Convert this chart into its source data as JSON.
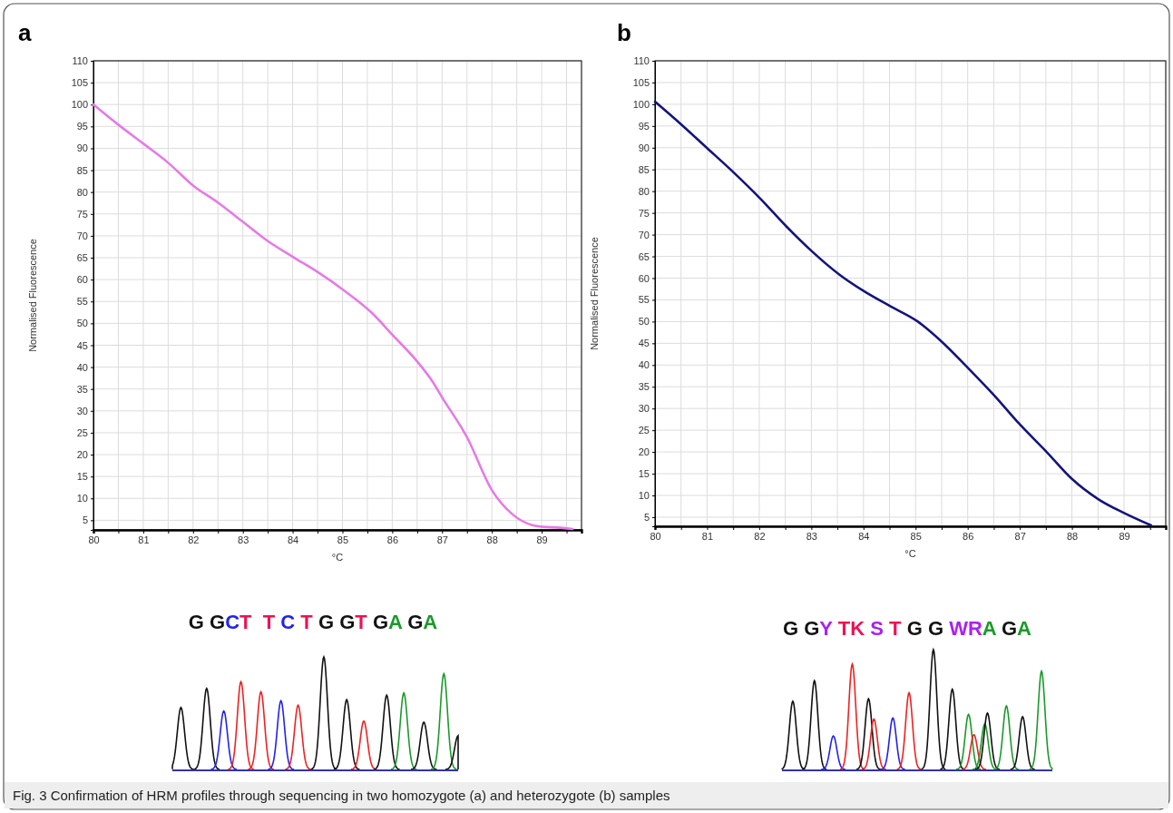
{
  "chart_data": [
    {
      "type": "line",
      "title": "a",
      "xlabel": "°C",
      "ylabel": "Normalised Fluorescence",
      "xlim": [
        80,
        89.8
      ],
      "ylim": [
        2.8,
        110
      ],
      "xticks": [
        80,
        {
          "value": 80.5,
          "label": null
        },
        81,
        {
          "value": 81.5,
          "label": null
        },
        82,
        {
          "value": 82.5,
          "label": null
        },
        83,
        {
          "value": 83.5,
          "label": null
        },
        84,
        {
          "value": 84.5,
          "label": null
        },
        85,
        {
          "value": 85.5,
          "label": null
        },
        86,
        {
          "value": 86.5,
          "label": null
        },
        87,
        {
          "value": 87.5,
          "label": null
        },
        88,
        {
          "value": 88.5,
          "label": null
        },
        89,
        {
          "value": 89.5,
          "label": null
        }
      ],
      "yticks": [
        5,
        10,
        15,
        20,
        25,
        30,
        35,
        40,
        45,
        50,
        55,
        60,
        65,
        70,
        75,
        80,
        85,
        90,
        95,
        100,
        105,
        110
      ],
      "grid": true,
      "marker": "none",
      "line_style": "solid",
      "series": [
        {
          "color": "#e67ae6",
          "x": [
            80,
            80.51,
            81.01,
            81.5,
            82,
            82.5,
            82.99,
            83.49,
            84.02,
            84.52,
            85.01,
            85.58,
            86.01,
            86.5,
            86.82,
            87,
            87.5,
            88,
            88.42,
            88.81,
            89.02,
            89.38,
            89.62
          ],
          "values": [
            100,
            95.3,
            91,
            86.7,
            81.5,
            77.6,
            73.3,
            68.9,
            65.1,
            61.6,
            57.7,
            52.5,
            47.3,
            41.3,
            36.5,
            33.1,
            24,
            11.9,
            6.3,
            3.9,
            3.5,
            3.3,
            3
          ]
        }
      ],
      "annotations": [
        "G GCT  T C T G GT GA GA",
        "Fig. 3  Confirmation of HRM profiles through sequencing in two homozygote (a) and heterozygote (b) samples"
      ]
    },
    {
      "type": "line",
      "title": "b",
      "xlabel": "°C",
      "ylabel": "Normalised Fluorescence",
      "xlim": [
        80,
        89.8
      ],
      "ylim": [
        2.9,
        110
      ],
      "xticks": [
        80,
        {
          "value": 80.5,
          "label": null
        },
        81,
        {
          "value": 81.5,
          "label": null
        },
        82,
        {
          "value": 82.5,
          "label": null
        },
        83,
        {
          "value": 83.5,
          "label": null
        },
        84,
        {
          "value": 84.5,
          "label": null
        },
        85,
        {
          "value": 85.5,
          "label": null
        },
        86,
        {
          "value": 86.5,
          "label": null
        },
        87,
        {
          "value": 87.5,
          "label": null
        },
        88,
        {
          "value": 88.5,
          "label": null
        },
        89,
        {
          "value": 89.5,
          "label": null
        }
      ],
      "yticks": [
        5,
        10,
        15,
        20,
        25,
        30,
        35,
        40,
        45,
        50,
        55,
        60,
        65,
        70,
        75,
        80,
        85,
        90,
        95,
        100,
        105,
        110
      ],
      "grid": true,
      "marker": "none",
      "line_style": "solid",
      "series": [
        {
          "color": "#14147a",
          "x": [
            80,
            80.49,
            81,
            81.51,
            82.02,
            82.52,
            82.99,
            83.54,
            84.01,
            84.52,
            85.03,
            85.5,
            86,
            86.51,
            86.98,
            87.53,
            88,
            88.51,
            89.01,
            89.52
          ],
          "values": [
            100.6,
            95.5,
            89.9,
            84.3,
            78.3,
            71.9,
            66.4,
            60.8,
            57,
            53.5,
            50.1,
            45.4,
            39.4,
            33,
            26.6,
            19.8,
            13.8,
            9.1,
            5.9,
            3.1
          ]
        }
      ],
      "annotations": [
        "G GY TK S T G G WRA GA"
      ]
    }
  ]
}
